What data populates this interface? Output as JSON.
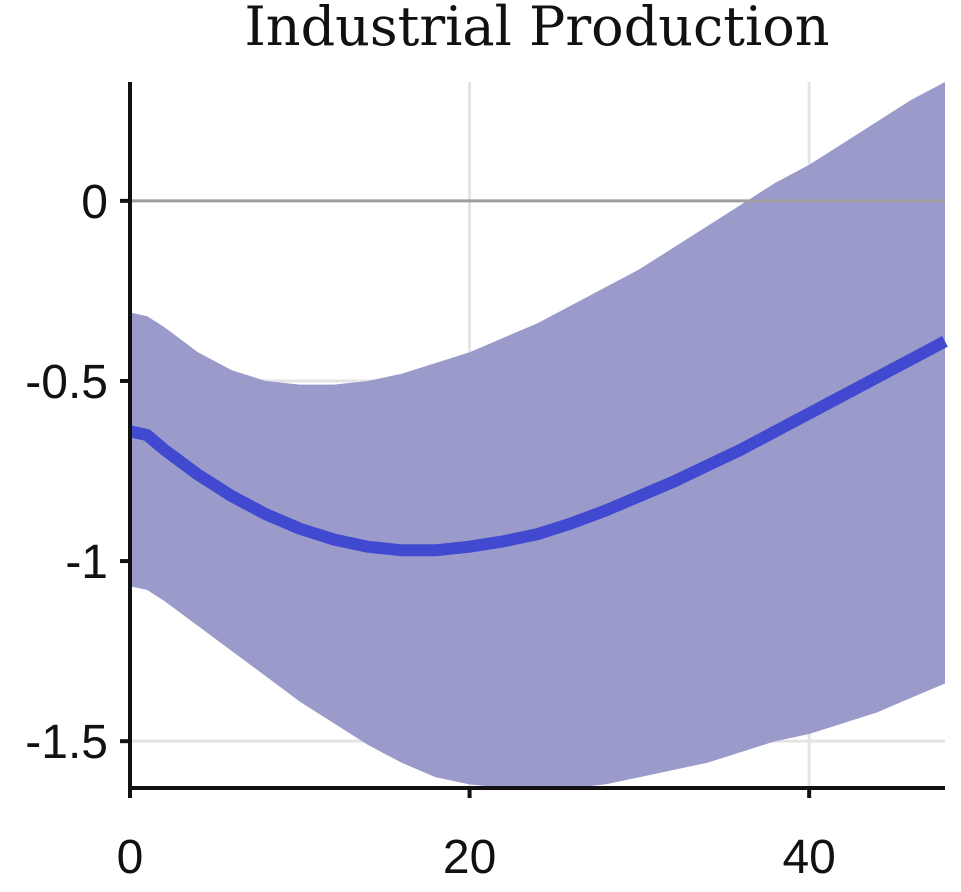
{
  "chart_data": {
    "type": "line",
    "title": "Industrial Production",
    "xlabel": "",
    "ylabel": "",
    "xlim": [
      0,
      48
    ],
    "ylim": [
      -1.63,
      0.33
    ],
    "grid": true,
    "legend": "none",
    "xticks": [
      0,
      20,
      40
    ],
    "xtick_labels": [
      "0",
      "20",
      "40"
    ],
    "yticks": [
      0,
      -0.5,
      -1,
      -1.5
    ],
    "ytick_labels": [
      "0",
      "-0.5",
      "-1",
      "-1.5"
    ],
    "reference_line": 0,
    "series": [
      {
        "x": [
          0,
          1,
          2,
          4,
          6,
          8,
          10,
          12,
          14,
          16,
          18,
          20,
          22,
          24,
          26,
          28,
          30,
          32,
          34,
          36,
          38,
          40,
          42,
          44,
          46,
          48
        ],
        "values": [
          -0.64,
          -0.65,
          -0.69,
          -0.76,
          -0.82,
          -0.87,
          -0.91,
          -0.94,
          -0.96,
          -0.97,
          -0.97,
          -0.96,
          -0.945,
          -0.925,
          -0.895,
          -0.86,
          -0.82,
          -0.78,
          -0.735,
          -0.69,
          -0.64,
          -0.59,
          -0.54,
          -0.49,
          -0.44,
          -0.39
        ]
      }
    ],
    "band": {
      "x": [
        0,
        1,
        2,
        4,
        6,
        8,
        10,
        12,
        14,
        16,
        18,
        20,
        22,
        24,
        26,
        28,
        30,
        32,
        34,
        36,
        38,
        40,
        42,
        44,
        46,
        48
      ],
      "upper": [
        -0.31,
        -0.32,
        -0.35,
        -0.42,
        -0.47,
        -0.5,
        -0.51,
        -0.51,
        -0.5,
        -0.48,
        -0.45,
        -0.42,
        -0.38,
        -0.34,
        -0.29,
        -0.24,
        -0.19,
        -0.13,
        -0.07,
        -0.01,
        0.05,
        0.1,
        0.16,
        0.22,
        0.28,
        0.33
      ],
      "lower": [
        -1.07,
        -1.08,
        -1.11,
        -1.18,
        -1.25,
        -1.32,
        -1.39,
        -1.45,
        -1.51,
        -1.56,
        -1.6,
        -1.62,
        -1.63,
        -1.635,
        -1.63,
        -1.62,
        -1.6,
        -1.58,
        -1.56,
        -1.53,
        -1.5,
        -1.48,
        -1.45,
        -1.42,
        -1.38,
        -1.34
      ]
    },
    "colors": {
      "line": "#4049d0",
      "band": "#9a9bca",
      "grid": "#e4e4e4",
      "zero_line": "#9e9e9e",
      "axis": "#111111"
    }
  }
}
